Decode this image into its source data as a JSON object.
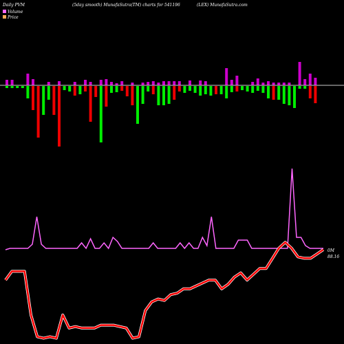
{
  "header": {
    "left": "Daily PVM",
    "center": "(5day smooth) MunafaSutra(TM) charts for 541196",
    "right": "(LEX) MunafaSutra.com"
  },
  "legend": {
    "volume_label": "Volume",
    "price_label": "Price",
    "volume_swatch": "#ff66ff",
    "price_swatch": "#ffaa55"
  },
  "labels": {
    "zero_label": "0M",
    "last_price": "88.16"
  },
  "colors": {
    "background": "#000000",
    "up_bar": "#00ee00",
    "down_bar": "#ee0000",
    "volume_bar": "#cc00cc",
    "baseline": "#cccccc",
    "volume_line": "#ff66ff",
    "price_line": "#ff0000",
    "price_line_glow": "#ffffff"
  },
  "chart_data": {
    "type": "bar",
    "x_count": 60,
    "pvm_bars": [
      {
        "dir": "up",
        "value": 3
      },
      {
        "dir": "up",
        "value": 3
      },
      {
        "dir": "up",
        "value": 3
      },
      {
        "dir": "up",
        "value": 3
      },
      {
        "dir": "up",
        "value": 18
      },
      {
        "dir": "down",
        "value": 35
      },
      {
        "dir": "down",
        "value": 75
      },
      {
        "dir": "up",
        "value": 42
      },
      {
        "dir": "up",
        "value": 20
      },
      {
        "dir": "down",
        "value": 42
      },
      {
        "dir": "down",
        "value": 88
      },
      {
        "dir": "up",
        "value": 6
      },
      {
        "dir": "up",
        "value": 8
      },
      {
        "dir": "down",
        "value": 14
      },
      {
        "dir": "up",
        "value": 12
      },
      {
        "dir": "down",
        "value": 8
      },
      {
        "dir": "down",
        "value": 52
      },
      {
        "dir": "down",
        "value": 16
      },
      {
        "dir": "up",
        "value": 82
      },
      {
        "dir": "down",
        "value": 30
      },
      {
        "dir": "up",
        "value": 10
      },
      {
        "dir": "up",
        "value": 9
      },
      {
        "dir": "down",
        "value": 7
      },
      {
        "dir": "down",
        "value": 15
      },
      {
        "dir": "down",
        "value": 28
      },
      {
        "dir": "up",
        "value": 55
      },
      {
        "dir": "up",
        "value": 26
      },
      {
        "dir": "up",
        "value": 8
      },
      {
        "dir": "down",
        "value": 12
      },
      {
        "dir": "up",
        "value": 28
      },
      {
        "dir": "up",
        "value": 28
      },
      {
        "dir": "up",
        "value": 26
      },
      {
        "dir": "down",
        "value": 20
      },
      {
        "dir": "down",
        "value": 8
      },
      {
        "dir": "up",
        "value": 10
      },
      {
        "dir": "up",
        "value": 7
      },
      {
        "dir": "up",
        "value": 10
      },
      {
        "dir": "up",
        "value": 14
      },
      {
        "dir": "up",
        "value": 12
      },
      {
        "dir": "up",
        "value": 14
      },
      {
        "dir": "down",
        "value": 12
      },
      {
        "dir": "up",
        "value": 12
      },
      {
        "dir": "up",
        "value": 18
      },
      {
        "dir": "up",
        "value": 9
      },
      {
        "dir": "down",
        "value": 8
      },
      {
        "dir": "up",
        "value": 6
      },
      {
        "dir": "up",
        "value": 8
      },
      {
        "dir": "up",
        "value": 10
      },
      {
        "dir": "up",
        "value": 7
      },
      {
        "dir": "up",
        "value": 10
      },
      {
        "dir": "up",
        "value": 18
      },
      {
        "dir": "down",
        "value": 20
      },
      {
        "dir": "up",
        "value": 20
      },
      {
        "dir": "up",
        "value": 26
      },
      {
        "dir": "up",
        "value": 28
      },
      {
        "dir": "up",
        "value": 32
      },
      {
        "dir": "up",
        "value": 4
      },
      {
        "dir": "up",
        "value": 4
      },
      {
        "dir": "down",
        "value": 18
      },
      {
        "dir": "down",
        "value": 25
      }
    ],
    "volume_bars": [
      8,
      8,
      0,
      0,
      17,
      9,
      0,
      0,
      5,
      0,
      6,
      0,
      0,
      5,
      0,
      8,
      5,
      0,
      8,
      9,
      5,
      3,
      6,
      0,
      4,
      0,
      4,
      5,
      6,
      4,
      6,
      6,
      6,
      6,
      0,
      7,
      0,
      7,
      6,
      0,
      0,
      0,
      25,
      8,
      14,
      0,
      0,
      5,
      10,
      4,
      6,
      4,
      4,
      4,
      4,
      0,
      34,
      9,
      17,
      11
    ],
    "volume_line": [
      2,
      4,
      4,
      4,
      4,
      4,
      10,
      50,
      10,
      4,
      4,
      4,
      4,
      4,
      4,
      4,
      4,
      12,
      4,
      18,
      4,
      4,
      12,
      4,
      20,
      14,
      4,
      4,
      4,
      4,
      4,
      4,
      4,
      12,
      4,
      4,
      4,
      4,
      4,
      12,
      4,
      12,
      4,
      4,
      20,
      8,
      50,
      4,
      4,
      4,
      4,
      4,
      16,
      16,
      16,
      4,
      4,
      4,
      4,
      4,
      4,
      4,
      4,
      4,
      120,
      20,
      20,
      8,
      4,
      4,
      4,
      4
    ],
    "price_line": [
      88,
      100,
      100,
      100,
      40,
      10,
      8,
      10,
      8,
      40,
      22,
      24,
      22,
      22,
      22,
      26,
      26,
      26,
      24,
      22,
      8,
      10,
      46,
      58,
      62,
      60,
      68,
      70,
      76,
      76,
      80,
      84,
      88,
      88,
      76,
      82,
      92,
      98,
      88,
      96,
      104,
      104,
      118,
      132,
      140,
      132,
      120,
      118,
      118,
      124,
      130
    ],
    "price_y_max": 180,
    "last_price": 88.16
  }
}
